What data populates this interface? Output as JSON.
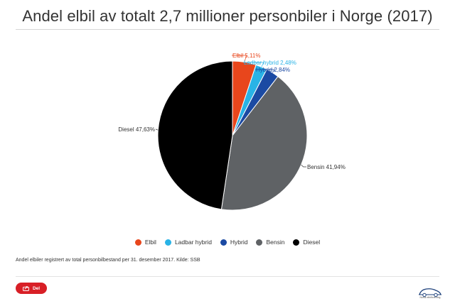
{
  "title": "Andel elbil av totalt 2,7 millioner personbiler i Norge (2017)",
  "footnote": "Andel elbiler registrert av total personbilbestand per 31. desember 2017. Kilde: SSB",
  "share": {
    "label": "Del",
    "icon": "share-icon"
  },
  "brand": {
    "text": "Norsk elbilforening",
    "icon": "car-logo-icon"
  },
  "chart_data": {
    "type": "pie",
    "title": "Andel elbil av totalt 2,7 millioner personbiler i Norge (2017)",
    "categories": [
      "Elbil",
      "Ladbar hybrid",
      "Hybrid",
      "Bensin",
      "Diesel"
    ],
    "values": [
      5.11,
      2.48,
      2.84,
      41.94,
      47.63
    ],
    "labels": [
      "Elbil 5,11%",
      "Ladbar hybrid 2,48%",
      "Hybrid 2,84%",
      "Bensin 41,94%",
      "Diesel 47,63%"
    ],
    "colors": [
      "#e8461c",
      "#29b3e6",
      "#1b4aa3",
      "#5f6265",
      "#000000"
    ],
    "label_colors": [
      "#e8461c",
      "#29b3e6",
      "#1b4aa3",
      "#333333",
      "#333333"
    ],
    "legend": [
      "Elbil",
      "Ladbar hybrid",
      "Hybrid",
      "Bensin",
      "Diesel"
    ],
    "legend_position": "bottom"
  }
}
